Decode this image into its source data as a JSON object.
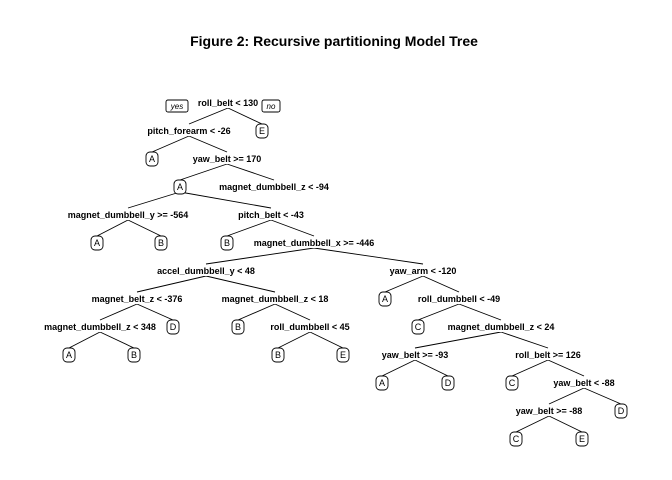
{
  "title": "Figure 2: Recursive partitioning Model Tree",
  "branch_labels": {
    "yes": "yes",
    "no": "no"
  },
  "nodes": [
    {
      "id": "n1",
      "label": "roll_belt < 130"
    },
    {
      "id": "n2",
      "label": "pitch_forearm < -26"
    },
    {
      "id": "n3",
      "label": "E"
    },
    {
      "id": "n4",
      "label": "A"
    },
    {
      "id": "n5",
      "label": "yaw_belt >= 170"
    },
    {
      "id": "n6",
      "label": "A"
    },
    {
      "id": "n7",
      "label": "magnet_dumbbell_z < -94"
    },
    {
      "id": "n8",
      "label": "magnet_dumbbell_y >= -564"
    },
    {
      "id": "n9",
      "label": "pitch_belt < -43"
    },
    {
      "id": "n10",
      "label": "A"
    },
    {
      "id": "n11",
      "label": "B"
    },
    {
      "id": "n12",
      "label": "B"
    },
    {
      "id": "n13",
      "label": "magnet_dumbbell_x >= -446"
    },
    {
      "id": "n14",
      "label": "accel_dumbbell_y < 48"
    },
    {
      "id": "n15",
      "label": "yaw_arm < -120"
    },
    {
      "id": "n16",
      "label": "magnet_belt_z < -376"
    },
    {
      "id": "n17",
      "label": "magnet_dumbbell_z < 18"
    },
    {
      "id": "n18",
      "label": "A"
    },
    {
      "id": "n19",
      "label": "roll_dumbbell < -49"
    },
    {
      "id": "n20",
      "label": "magnet_dumbbell_z < 348"
    },
    {
      "id": "n21",
      "label": "D"
    },
    {
      "id": "n22",
      "label": "B"
    },
    {
      "id": "n23",
      "label": "roll_dumbbell < 45"
    },
    {
      "id": "n24",
      "label": "C"
    },
    {
      "id": "n25",
      "label": "magnet_dumbbell_z < 24"
    },
    {
      "id": "n26",
      "label": "A"
    },
    {
      "id": "n27",
      "label": "B"
    },
    {
      "id": "n28",
      "label": "B"
    },
    {
      "id": "n29",
      "label": "E"
    },
    {
      "id": "n30",
      "label": "yaw_belt >= -93"
    },
    {
      "id": "n31",
      "label": "roll_belt >= 126"
    },
    {
      "id": "n32",
      "label": "A"
    },
    {
      "id": "n33",
      "label": "D"
    },
    {
      "id": "n34",
      "label": "C"
    },
    {
      "id": "n35",
      "label": "yaw_belt < -88"
    },
    {
      "id": "n36",
      "label": "yaw_belt >= -88"
    },
    {
      "id": "n37",
      "label": "D"
    },
    {
      "id": "n38",
      "label": "C"
    },
    {
      "id": "n39",
      "label": "E"
    }
  ],
  "edges": [
    [
      "n1",
      "n2"
    ],
    [
      "n1",
      "n3"
    ],
    [
      "n2",
      "n4"
    ],
    [
      "n2",
      "n5"
    ],
    [
      "n5",
      "n6"
    ],
    [
      "n5",
      "n7"
    ],
    [
      "n6",
      "n8"
    ],
    [
      "n6",
      "n9"
    ],
    [
      "n8",
      "n10"
    ],
    [
      "n8",
      "n11"
    ],
    [
      "n9",
      "n12"
    ],
    [
      "n9",
      "n13"
    ],
    [
      "n13",
      "n14"
    ],
    [
      "n13",
      "n15"
    ],
    [
      "n14",
      "n16"
    ],
    [
      "n14",
      "n17"
    ],
    [
      "n15",
      "n18"
    ],
    [
      "n15",
      "n19"
    ],
    [
      "n16",
      "n20"
    ],
    [
      "n16",
      "n21"
    ],
    [
      "n17",
      "n22"
    ],
    [
      "n17",
      "n23"
    ],
    [
      "n19",
      "n24"
    ],
    [
      "n19",
      "n25"
    ],
    [
      "n20",
      "n26"
    ],
    [
      "n20",
      "n27"
    ],
    [
      "n23",
      "n28"
    ],
    [
      "n23",
      "n29"
    ],
    [
      "n25",
      "n30"
    ],
    [
      "n25",
      "n31"
    ],
    [
      "n30",
      "n32"
    ],
    [
      "n30",
      "n33"
    ],
    [
      "n31",
      "n34"
    ],
    [
      "n31",
      "n35"
    ],
    [
      "n35",
      "n36"
    ],
    [
      "n35",
      "n37"
    ],
    [
      "n36",
      "n38"
    ],
    [
      "n36",
      "n39"
    ]
  ]
}
